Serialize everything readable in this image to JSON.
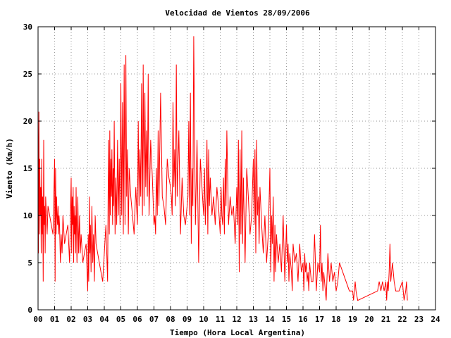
{
  "chart_data": {
    "type": "line",
    "title": "Velocidad de Vientos 28/09/2006",
    "xlabel": "Tiempo (Hora Local Argentina)",
    "ylabel": "Viento (Km/h)",
    "xlim": [
      0,
      24
    ],
    "ylim": [
      0,
      30
    ],
    "x_ticks": [
      "00",
      "01",
      "02",
      "03",
      "04",
      "05",
      "06",
      "07",
      "08",
      "09",
      "10",
      "11",
      "12",
      "13",
      "14",
      "15",
      "16",
      "17",
      "18",
      "19",
      "20",
      "21",
      "22",
      "23",
      "24"
    ],
    "y_ticks": [
      0,
      5,
      10,
      15,
      20,
      25,
      30
    ],
    "grid": true,
    "line_color": "#ff0000",
    "series": [
      {
        "x": [
          0.0,
          0.02,
          0.05,
          0.08,
          0.1,
          0.13,
          0.16,
          0.19,
          0.22,
          0.25,
          0.28,
          0.31,
          0.34,
          0.37,
          0.4,
          0.43,
          0.46,
          0.5,
          0.55,
          0.6,
          0.7,
          0.8,
          0.9,
          1.0,
          1.03,
          1.06,
          1.09,
          1.12,
          1.15,
          1.18,
          1.21,
          1.24,
          1.27,
          1.3,
          1.35,
          1.4,
          1.45,
          1.5,
          1.6,
          1.7,
          1.8,
          1.9,
          2.0,
          2.03,
          2.06,
          2.09,
          2.12,
          2.15,
          2.18,
          2.21,
          2.24,
          2.27,
          2.3,
          2.35,
          2.4,
          2.45,
          2.5,
          2.55,
          2.6,
          2.7,
          2.8,
          2.9,
          3.0,
          3.03,
          3.06,
          3.1,
          3.13,
          3.16,
          3.2,
          3.25,
          3.3,
          3.35,
          3.4,
          3.45,
          3.5,
          3.6,
          3.7,
          3.8,
          3.9,
          4.0,
          4.1,
          4.2,
          4.25,
          4.3,
          4.33,
          4.36,
          4.4,
          4.43,
          4.46,
          4.5,
          4.53,
          4.56,
          4.6,
          4.65,
          4.7,
          4.75,
          4.8,
          4.85,
          4.9,
          4.95,
          5.0,
          5.05,
          5.1,
          5.15,
          5.2,
          5.25,
          5.3,
          5.35,
          5.4,
          5.45,
          5.5,
          5.6,
          5.7,
          5.8,
          5.9,
          6.0,
          6.05,
          6.1,
          6.15,
          6.2,
          6.25,
          6.3,
          6.35,
          6.4,
          6.45,
          6.5,
          6.55,
          6.6,
          6.65,
          6.7,
          6.8,
          6.9,
          7.0,
          7.05,
          7.1,
          7.15,
          7.2,
          7.25,
          7.3,
          7.4,
          7.5,
          7.6,
          7.7,
          7.8,
          7.9,
          8.0,
          8.05,
          8.1,
          8.15,
          8.2,
          8.25,
          8.3,
          8.35,
          8.4,
          8.5,
          8.6,
          8.7,
          8.8,
          8.9,
          9.0,
          9.05,
          9.1,
          9.15,
          9.2,
          9.25,
          9.3,
          9.35,
          9.4,
          9.5,
          9.6,
          9.7,
          9.8,
          9.9,
          10.0,
          10.05,
          10.1,
          10.15,
          10.2,
          10.25,
          10.3,
          10.35,
          10.4,
          10.5,
          10.6,
          10.7,
          10.8,
          10.9,
          11.0,
          11.05,
          11.1,
          11.15,
          11.2,
          11.25,
          11.3,
          11.35,
          11.4,
          11.5,
          11.6,
          11.7,
          11.8,
          11.9,
          12.0,
          12.05,
          12.1,
          12.15,
          12.2,
          12.25,
          12.3,
          12.35,
          12.4,
          12.5,
          12.6,
          12.7,
          12.8,
          12.9,
          13.0,
          13.05,
          13.1,
          13.15,
          13.2,
          13.25,
          13.3,
          13.35,
          13.4,
          13.5,
          13.6,
          13.7,
          13.8,
          13.9,
          14.0,
          14.05,
          14.1,
          14.15,
          14.2,
          14.25,
          14.3,
          14.35,
          14.4,
          14.5,
          14.6,
          14.7,
          14.8,
          14.9,
          15.0,
          15.05,
          15.1,
          15.15,
          15.2,
          15.25,
          15.3,
          15.35,
          15.4,
          15.5,
          15.6,
          15.7,
          15.8,
          15.9,
          16.0,
          16.05,
          16.1,
          16.15,
          16.2,
          16.25,
          16.3,
          16.35,
          16.4,
          16.5,
          16.6,
          16.7,
          16.8,
          16.9,
          17.0,
          17.05,
          17.1,
          17.15,
          17.2,
          17.25,
          17.3,
          17.35,
          17.4,
          17.5,
          17.6,
          17.7,
          17.8,
          17.9,
          18.0,
          18.1,
          18.2,
          18.4,
          18.6,
          18.8,
          19.0,
          19.05,
          19.1,
          19.15,
          19.2,
          19.3,
          20.5,
          20.6,
          20.7,
          20.8,
          20.9,
          21.0,
          21.05,
          21.1,
          21.15,
          21.2,
          21.25,
          21.3,
          21.4,
          21.5,
          21.6,
          21.8,
          22.0,
          22.1,
          22.2,
          22.25,
          22.3
        ],
        "y": [
          20,
          6,
          21,
          8,
          16,
          10,
          13,
          6,
          16,
          8,
          12,
          3,
          18,
          9,
          11,
          6,
          12,
          10,
          8,
          11,
          10,
          9,
          8,
          16,
          3,
          15,
          8,
          12,
          10,
          9,
          11,
          8,
          10,
          9,
          5,
          8,
          6,
          10,
          7,
          8,
          9,
          5,
          14,
          6,
          12,
          9,
          13,
          5,
          11,
          8,
          10,
          6,
          13,
          5,
          12,
          6,
          10,
          6,
          8,
          5,
          6,
          7,
          2,
          8,
          3,
          12,
          6,
          9,
          4,
          11,
          5,
          8,
          3,
          10,
          7,
          6,
          5,
          4,
          3,
          6,
          9,
          3,
          18,
          8,
          19,
          10,
          16,
          12,
          17,
          9,
          15,
          11,
          20,
          8,
          14,
          9,
          18,
          10,
          16,
          9,
          24,
          10,
          22,
          8,
          26,
          9,
          27,
          12,
          17,
          8,
          15,
          12,
          10,
          8,
          13,
          9,
          20,
          11,
          17,
          12,
          24,
          10,
          26,
          11,
          23,
          13,
          19,
          12,
          25,
          10,
          18,
          14,
          9,
          10,
          8,
          15,
          10,
          19,
          11,
          23,
          12,
          11,
          9,
          16,
          14,
          13,
          12,
          10,
          22,
          13,
          17,
          11,
          26,
          12,
          19,
          8,
          14,
          10,
          9,
          11,
          12,
          20,
          10,
          23,
          7,
          15,
          11,
          29,
          9,
          18,
          5,
          16,
          13,
          10,
          15,
          9,
          12,
          18,
          8,
          17,
          11,
          14,
          10,
          12,
          9,
          13,
          11,
          8,
          13,
          10,
          9,
          14,
          8,
          16,
          11,
          19,
          9,
          12,
          10,
          11,
          7,
          13,
          9,
          18,
          4,
          17,
          8,
          19,
          7,
          14,
          5,
          15,
          12,
          8,
          10,
          16,
          9,
          17,
          6,
          18,
          10,
          12,
          7,
          13,
          9,
          6,
          10,
          5,
          8,
          15,
          4,
          10,
          7,
          12,
          3,
          9,
          4,
          8,
          5,
          7,
          4,
          10,
          3,
          9,
          5,
          7,
          3,
          6,
          5,
          4,
          2,
          7,
          5,
          6,
          3,
          7,
          4,
          5,
          2,
          6,
          4,
          5,
          3,
          4,
          2,
          5,
          3,
          3,
          8,
          2,
          5,
          4,
          9,
          3,
          5,
          2,
          4,
          3,
          2,
          1,
          6,
          3,
          5,
          3,
          4,
          2,
          3,
          5,
          4,
          3,
          2,
          2,
          1,
          2,
          3,
          2,
          1,
          2,
          3,
          2,
          3,
          2,
          3,
          1,
          3,
          2,
          4,
          7,
          3,
          5,
          3,
          2,
          2,
          3,
          1,
          2,
          3,
          1
        ]
      }
    ]
  }
}
